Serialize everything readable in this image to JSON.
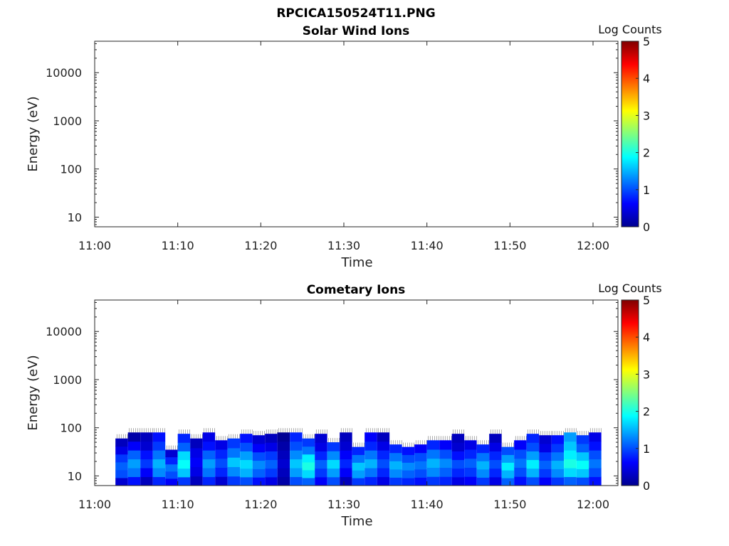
{
  "title": "RPCICA150524T11.PNG",
  "chart_data": [
    {
      "type": "heatmap",
      "title": "Solar Wind Ions",
      "xlabel": "Time",
      "ylabel": "Energy (eV)",
      "x_ticks": [
        "11:00",
        "11:10",
        "11:20",
        "11:30",
        "11:40",
        "11:50",
        "12:00"
      ],
      "y_ticks": [
        "10",
        "100",
        "1000",
        "10000"
      ],
      "y_scale": "log",
      "colorbar": {
        "label": "Log Counts",
        "ticks": [
          "0",
          "1",
          "2",
          "3",
          "4",
          "5"
        ],
        "range": [
          0,
          5
        ]
      },
      "columns": []
    },
    {
      "type": "heatmap",
      "title": "Cometary Ions",
      "xlabel": "Time",
      "ylabel": "Energy (eV)",
      "x_ticks": [
        "11:00",
        "11:10",
        "11:20",
        "11:30",
        "11:40",
        "11:50",
        "12:00"
      ],
      "y_ticks": [
        "10",
        "100",
        "1000",
        "10000"
      ],
      "y_scale": "log",
      "colorbar": {
        "label": "Log Counts",
        "ticks": [
          "0",
          "1",
          "2",
          "3",
          "4",
          "5"
        ],
        "range": [
          0,
          5
        ]
      },
      "columns": [
        {
          "t0": "11:02:30",
          "t1": "11:04:00",
          "emax": 60,
          "v": [
            0.4,
            1.0,
            1.1,
            0.9,
            0.5,
            0.3
          ]
        },
        {
          "t0": "11:04:00",
          "t1": "11:05:30",
          "emax": 80,
          "v": [
            0.7,
            1.2,
            1.4,
            1.1,
            0.6,
            0.2
          ]
        },
        {
          "t0": "11:05:30",
          "t1": "11:07:00",
          "emax": 80,
          "v": [
            0.3,
            0.6,
            0.9,
            0.7,
            0.4,
            0.3
          ]
        },
        {
          "t0": "11:07:00",
          "t1": "11:08:30",
          "emax": 80,
          "v": [
            0.8,
            1.3,
            1.5,
            1.2,
            0.9,
            0.7
          ]
        },
        {
          "t0": "11:08:30",
          "t1": "11:10:00",
          "emax": 35,
          "v": [
            0.6,
            1.0,
            1.2,
            0.8,
            0.4
          ]
        },
        {
          "t0": "11:10:00",
          "t1": "11:11:30",
          "emax": 75,
          "v": [
            0.9,
            1.6,
            1.9,
            1.7,
            1.1,
            0.8
          ]
        },
        {
          "t0": "11:11:30",
          "t1": "11:13:00",
          "emax": 60,
          "v": [
            0.3,
            0.5,
            0.6,
            0.5,
            0.3
          ]
        },
        {
          "t0": "11:13:00",
          "t1": "11:14:30",
          "emax": 80,
          "v": [
            0.8,
            1.2,
            1.4,
            1.1,
            0.7,
            0.5
          ]
        },
        {
          "t0": "11:14:30",
          "t1": "11:16:00",
          "emax": 55,
          "v": [
            0.4,
            0.8,
            1.0,
            0.8,
            0.5
          ]
        },
        {
          "t0": "11:16:00",
          "t1": "11:17:30",
          "emax": 60,
          "v": [
            0.9,
            1.3,
            1.6,
            1.2,
            0.9
          ]
        },
        {
          "t0": "11:17:30",
          "t1": "11:19:00",
          "emax": 75,
          "v": [
            1.0,
            1.5,
            1.7,
            1.4,
            1.0,
            0.7
          ]
        },
        {
          "t0": "11:19:00",
          "t1": "11:20:30",
          "emax": 70,
          "v": [
            0.7,
            1.1,
            1.3,
            1.0,
            0.6,
            0.4
          ]
        },
        {
          "t0": "11:20:30",
          "t1": "11:22:00",
          "emax": 75,
          "v": [
            0.5,
            0.9,
            1.1,
            0.9,
            0.5,
            0.3
          ]
        },
        {
          "t0": "11:22:00",
          "t1": "11:23:30",
          "emax": 80,
          "v": [
            0.2,
            0.3,
            0.4,
            0.3,
            0.2,
            0.1
          ]
        },
        {
          "t0": "11:23:30",
          "t1": "11:25:00",
          "emax": 80,
          "v": [
            1.0,
            1.4,
            1.6,
            1.3,
            1.0,
            0.8
          ]
        },
        {
          "t0": "11:25:00",
          "t1": "11:26:30",
          "emax": 60,
          "v": [
            1.1,
            1.7,
            2.0,
            1.8,
            1.2,
            0.9
          ]
        },
        {
          "t0": "11:26:30",
          "t1": "11:28:00",
          "emax": 75,
          "v": [
            0.6,
            0.9,
            1.1,
            0.8,
            0.5,
            0.4
          ]
        },
        {
          "t0": "11:28:00",
          "t1": "11:29:30",
          "emax": 50,
          "v": [
            1.0,
            1.4,
            1.7,
            1.3,
            0.9
          ]
        },
        {
          "t0": "11:29:30",
          "t1": "11:31:00",
          "emax": 80,
          "v": [
            0.3,
            0.6,
            0.8,
            0.6,
            0.4,
            0.3
          ]
        },
        {
          "t0": "11:31:00",
          "t1": "11:32:30",
          "emax": 40,
          "v": [
            0.9,
            1.4,
            1.6,
            1.2,
            0.8
          ]
        },
        {
          "t0": "11:32:30",
          "t1": "11:34:00",
          "emax": 80,
          "v": [
            0.8,
            1.2,
            1.5,
            1.2,
            0.8,
            0.6
          ]
        },
        {
          "t0": "11:34:00",
          "t1": "11:35:30",
          "emax": 80,
          "v": [
            0.5,
            0.8,
            1.0,
            0.8,
            0.5,
            0.3
          ]
        },
        {
          "t0": "11:35:30",
          "t1": "11:37:00",
          "emax": 45,
          "v": [
            0.9,
            1.3,
            1.5,
            1.2,
            0.8
          ]
        },
        {
          "t0": "11:37:00",
          "t1": "11:38:30",
          "emax": 40,
          "v": [
            0.8,
            1.1,
            1.3,
            1.0,
            0.7
          ]
        },
        {
          "t0": "11:38:30",
          "t1": "11:40:00",
          "emax": 45,
          "v": [
            0.7,
            1.0,
            1.2,
            1.0,
            0.6
          ]
        },
        {
          "t0": "11:40:00",
          "t1": "11:41:30",
          "emax": 55,
          "v": [
            0.9,
            1.3,
            1.5,
            1.2,
            0.8
          ]
        },
        {
          "t0": "11:41:30",
          "t1": "11:43:00",
          "emax": 55,
          "v": [
            0.8,
            1.1,
            1.3,
            1.0,
            0.6
          ]
        },
        {
          "t0": "11:43:00",
          "t1": "11:44:30",
          "emax": 75,
          "v": [
            0.5,
            0.8,
            1.0,
            0.7,
            0.4,
            0.3
          ]
        },
        {
          "t0": "11:44:30",
          "t1": "11:46:00",
          "emax": 55,
          "v": [
            0.6,
            0.9,
            1.1,
            0.8,
            0.5
          ]
        },
        {
          "t0": "11:46:00",
          "t1": "11:47:30",
          "emax": 45,
          "v": [
            0.9,
            1.3,
            1.5,
            1.2,
            0.8
          ]
        },
        {
          "t0": "11:47:30",
          "t1": "11:49:00",
          "emax": 75,
          "v": [
            0.5,
            0.8,
            1.0,
            0.8,
            0.5,
            0.3
          ]
        },
        {
          "t0": "11:49:00",
          "t1": "11:50:30",
          "emax": 40,
          "v": [
            1.1,
            1.5,
            1.8,
            1.4,
            1.0
          ]
        },
        {
          "t0": "11:50:30",
          "t1": "11:52:00",
          "emax": 55,
          "v": [
            0.7,
            1.0,
            1.2,
            1.0,
            0.6
          ]
        },
        {
          "t0": "11:52:00",
          "t1": "11:53:30",
          "emax": 75,
          "v": [
            1.0,
            1.5,
            1.8,
            1.4,
            1.0,
            0.8
          ]
        },
        {
          "t0": "11:53:30",
          "t1": "11:55:00",
          "emax": 70,
          "v": [
            0.6,
            0.9,
            1.1,
            0.9,
            0.5,
            0.4
          ]
        },
        {
          "t0": "11:55:00",
          "t1": "11:56:30",
          "emax": 70,
          "v": [
            0.9,
            1.3,
            1.5,
            1.2,
            0.9,
            0.7
          ]
        },
        {
          "t0": "11:56:30",
          "t1": "11:58:00",
          "emax": 80,
          "v": [
            1.1,
            1.7,
            2.0,
            1.8,
            1.6,
            1.4
          ]
        },
        {
          "t0": "11:58:00",
          "t1": "11:59:30",
          "emax": 70,
          "v": [
            1.0,
            1.6,
            1.9,
            1.6,
            1.1,
            0.9
          ]
        },
        {
          "t0": "11:59:30",
          "t1": "12:01:00",
          "emax": 80,
          "v": [
            0.7,
            1.0,
            1.2,
            1.0,
            0.7,
            0.5
          ]
        }
      ]
    }
  ]
}
